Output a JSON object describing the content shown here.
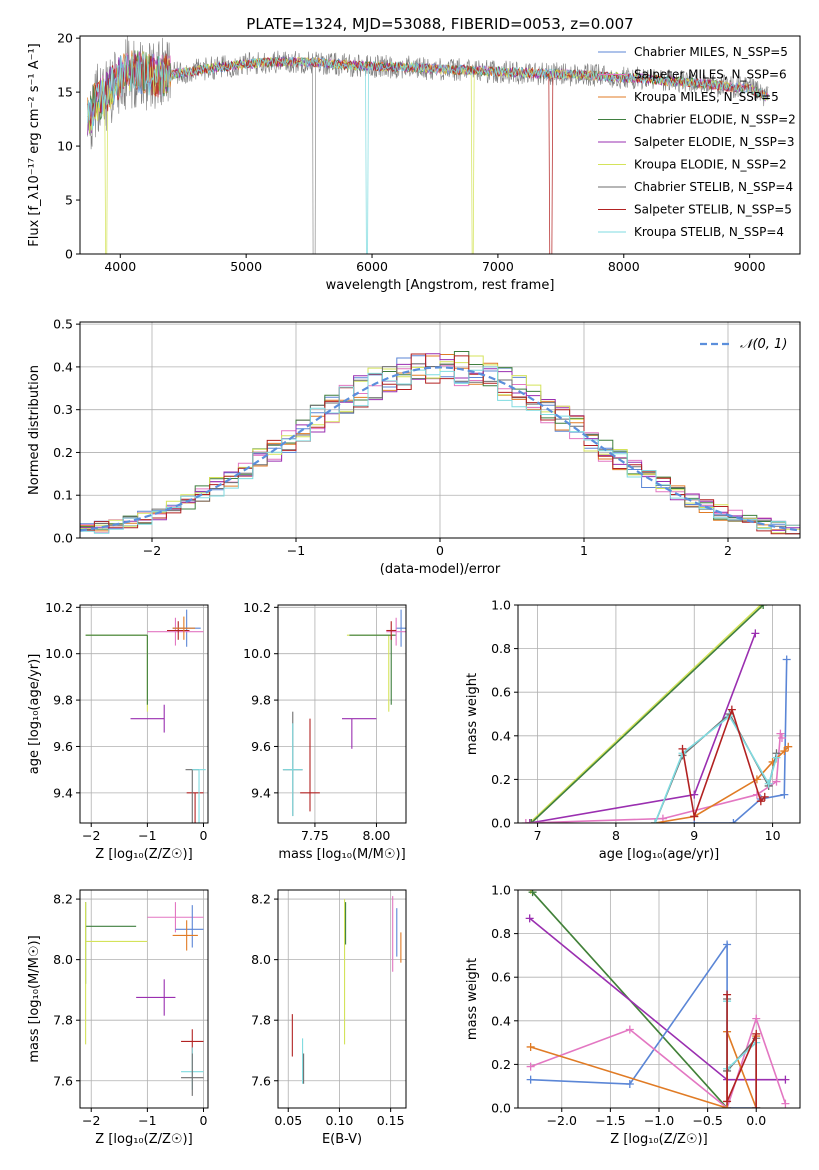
{
  "figure": {
    "title": "PLATE=1324, MJD=53088, FIBERID=0053, z=0.007"
  },
  "colors": {
    "grid": "#b0b0b0",
    "series": [
      "#5b86d6",
      "#e377c2",
      "#e07b25",
      "#3f7f3f",
      "#9a2fb0",
      "#d4e35a",
      "#6e6e6e",
      "#b22222",
      "#7fdbe0"
    ]
  },
  "chart_data": [
    {
      "id": "spectrum",
      "type": "line",
      "xlabel": "wavelength [Angstrom, rest frame]",
      "ylabel": "Flux [f_λ10⁻¹⁷ erg cm⁻² s⁻¹ A⁻¹]",
      "xlim": [
        3680,
        9400
      ],
      "ylim": [
        0,
        20.2
      ],
      "xticks": [
        4000,
        5000,
        6000,
        7000,
        8000,
        9000
      ],
      "yticks": [
        0,
        5,
        10,
        15,
        20
      ],
      "grid": false,
      "legend_position": "top-right",
      "legend": [
        "Chabrier MILES, N_SSP=5",
        "Salpeter MILES, N_SSP=6",
        "Kroupa MILES, N_SSP=5",
        "Chabrier ELODIE, N_SSP=2",
        "Salpeter ELODIE, N_SSP=3",
        "Kroupa ELODIE, N_SSP=2",
        "Chabrier STELIB, N_SSP=4",
        "Salpeter STELIB, N_SSP=5",
        "Kroupa STELIB, N_SSP=4"
      ],
      "continuum": {
        "x": [
          3750,
          3800,
          3900,
          4000,
          4100,
          4300,
          4500,
          4700,
          5000,
          5200,
          5500,
          5800,
          6000,
          6300,
          6600,
          7000,
          7400,
          7800,
          8200,
          8600,
          9000,
          9150
        ],
        "y": [
          12.5,
          14,
          15,
          16.5,
          17,
          16.5,
          16.8,
          17.2,
          17.6,
          17.8,
          17.8,
          17.5,
          17.4,
          17.3,
          17.1,
          16.9,
          16.7,
          16.5,
          16.2,
          15.8,
          15.3,
          14.5
        ]
      },
      "dropouts": [
        {
          "x": 3890,
          "series": 5
        },
        {
          "x": 5540,
          "series": 6
        },
        {
          "x": 5960,
          "series": 8
        },
        {
          "x": 6800,
          "series": 5
        },
        {
          "x": 7420,
          "series": 7
        }
      ]
    },
    {
      "id": "residuals",
      "type": "line",
      "xlabel": "(data-model)/error",
      "ylabel": "Normed distribution",
      "xlim": [
        -2.5,
        2.5
      ],
      "ylim": [
        0,
        0.505
      ],
      "xticks": [
        -2,
        -1,
        0,
        1,
        2
      ],
      "xtick_labels": [
        "−2",
        "−1",
        "0",
        "1",
        "2"
      ],
      "yticks": [
        0,
        0.1,
        0.2,
        0.3,
        0.4,
        0.5
      ],
      "ytick_labels": [
        "0.0",
        "0.1",
        "0.2",
        "0.3",
        "0.4",
        "0.5"
      ],
      "grid": true,
      "legend_position": "top-right",
      "legend": [
        "𝒩(0, 1)"
      ],
      "gaussian": {
        "mean": 0,
        "sigma": 1,
        "amplitude": 0.3989
      },
      "histogram_bin_width": 0.1
    },
    {
      "id": "age-vs-Z",
      "type": "scatter",
      "xlabel": "Z [log₁₀(Z/Z☉)]",
      "ylabel": "age  [log₁₀(age/yr)]",
      "xlim": [
        -2.2,
        0.08
      ],
      "ylim": [
        9.27,
        10.21
      ],
      "xticks": [
        -2,
        -1,
        0
      ],
      "xtick_labels": [
        "−2",
        "−1",
        "0"
      ],
      "yticks": [
        9.4,
        9.6,
        9.8,
        10.0,
        10.2
      ],
      "ytick_labels": [
        "9.4",
        "9.6",
        "9.8",
        "10.0",
        "10.2"
      ],
      "grid": true,
      "points": [
        {
          "series": 5,
          "x": -1.0,
          "y": 10.08,
          "xerr": [
            1.1,
            0
          ],
          "yerr": [
            0.33,
            0
          ]
        },
        {
          "series": 3,
          "x": -1.0,
          "y": 10.08,
          "xerr": [
            1.1,
            0
          ],
          "yerr": [
            0.3,
            0
          ]
        },
        {
          "series": 0,
          "x": -0.3,
          "y": 10.11,
          "xerr": [
            0.25,
            0.25
          ],
          "yerr": [
            0.08,
            0.08
          ]
        },
        {
          "series": 1,
          "x": -0.5,
          "y": 10.095,
          "xerr": [
            0.5,
            0.5
          ],
          "yerr": [
            0.06,
            0.06
          ]
        },
        {
          "series": 7,
          "x": -0.45,
          "y": 10.1,
          "xerr": [
            0.2,
            0.2
          ],
          "yerr": [
            0.04,
            0.04
          ]
        },
        {
          "series": 2,
          "x": -0.35,
          "y": 10.11,
          "xerr": [
            0.2,
            0.2
          ],
          "yerr": [
            0.05,
            0.05
          ]
        },
        {
          "series": 4,
          "x": -0.7,
          "y": 9.72,
          "xerr": [
            0.6,
            0.0
          ],
          "yerr": [
            0.06,
            0.06
          ]
        },
        {
          "series": 7,
          "x": -0.15,
          "y": 9.4,
          "xerr": [
            0.15,
            0.15
          ],
          "yerr": [
            0.32,
            0.0
          ]
        },
        {
          "series": 6,
          "x": -0.2,
          "y": 9.5,
          "xerr": [
            0.12,
            0.12
          ],
          "yerr": [
            0.25,
            0.0
          ]
        },
        {
          "series": 8,
          "x": -0.08,
          "y": 9.5,
          "xerr": [
            0.12,
            0.12
          ],
          "yerr": [
            0.25,
            0.0
          ]
        }
      ]
    },
    {
      "id": "age-vs-mass",
      "type": "scatter",
      "xlabel": "mass [log₁₀(M/M☉)]",
      "ylabel": "",
      "xlim": [
        7.6,
        8.12
      ],
      "ylim": [
        9.27,
        10.21
      ],
      "xticks": [
        7.75,
        8.0
      ],
      "xtick_labels": [
        "7.75",
        "8.00"
      ],
      "yticks": [
        9.4,
        9.6,
        9.8,
        10.0,
        10.2
      ],
      "ytick_labels": [
        "9.4",
        "9.6",
        "9.8",
        "10.0",
        "10.2"
      ],
      "grid": true,
      "points": [
        {
          "series": 5,
          "x": 8.05,
          "y": 10.08,
          "xerr": [
            0.17,
            0.02
          ],
          "yerr": [
            0.33,
            0
          ]
        },
        {
          "series": 3,
          "x": 8.06,
          "y": 10.08,
          "xerr": [
            0.17,
            0.02
          ],
          "yerr": [
            0.3,
            0
          ]
        },
        {
          "series": 0,
          "x": 8.1,
          "y": 10.11,
          "xerr": [
            0.02,
            0.02
          ],
          "yerr": [
            0.08,
            0.08
          ]
        },
        {
          "series": 1,
          "x": 8.08,
          "y": 10.095,
          "xerr": [
            0.04,
            0.04
          ],
          "yerr": [
            0.06,
            0.06
          ]
        },
        {
          "series": 7,
          "x": 8.06,
          "y": 10.1,
          "xerr": [
            0.02,
            0.02
          ],
          "yerr": [
            0.04,
            0.04
          ]
        },
        {
          "series": 4,
          "x": 7.9,
          "y": 9.72,
          "xerr": [
            0.04,
            0.1
          ],
          "yerr": [
            0.13,
            0.0
          ]
        },
        {
          "series": 7,
          "x": 7.73,
          "y": 9.4,
          "xerr": [
            0.04,
            0.04
          ],
          "yerr": [
            0.08,
            0.32
          ]
        },
        {
          "series": 6,
          "x": 7.66,
          "y": 9.5,
          "xerr": [
            0.04,
            0.04
          ],
          "yerr": [
            0.2,
            0.25
          ]
        },
        {
          "series": 8,
          "x": 7.66,
          "y": 9.5,
          "xerr": [
            0.04,
            0.04
          ],
          "yerr": [
            0.2,
            0.2
          ]
        }
      ]
    },
    {
      "id": "weight-vs-age",
      "type": "line",
      "xlabel": "age  [log₁₀(age/yr)]",
      "ylabel": "mass weight",
      "xlim": [
        6.75,
        10.35
      ],
      "ylim": [
        0,
        1
      ],
      "xticks": [
        7,
        8,
        9,
        10
      ],
      "yticks": [
        0,
        0.2,
        0.4,
        0.6,
        0.8,
        1.0
      ],
      "ytick_labels": [
        "0.0",
        "0.2",
        "0.4",
        "0.6",
        "0.8",
        "1.0"
      ],
      "grid": true,
      "series": [
        {
          "color_index": 5,
          "x": [
            6.9,
            9.85
          ],
          "y": [
            0.0,
            1.0
          ]
        },
        {
          "color_index": 3,
          "x": [
            6.92,
            9.88
          ],
          "y": [
            0.0,
            1.0
          ]
        },
        {
          "color_index": 4,
          "x": [
            6.9,
            9.0,
            9.78
          ],
          "y": [
            0.0,
            0.13,
            0.87
          ]
        },
        {
          "color_index": 0,
          "x": [
            8.5,
            9.0,
            9.5,
            9.85,
            10.15,
            10.18
          ],
          "y": [
            0.0,
            0.0,
            0.0,
            0.11,
            0.13,
            0.75
          ]
        },
        {
          "color_index": 1,
          "x": [
            6.85,
            8.6,
            9.8,
            10.05,
            10.1,
            10.12
          ],
          "y": [
            0.0,
            0.02,
            0.13,
            0.19,
            0.41,
            0.39
          ]
        },
        {
          "color_index": 2,
          "x": [
            8.5,
            9.0,
            9.8,
            10.0,
            10.15,
            10.2
          ],
          "y": [
            0.0,
            0.03,
            0.2,
            0.28,
            0.33,
            0.35
          ]
        },
        {
          "color_index": 6,
          "x": [
            8.5,
            8.85,
            9.45,
            9.95,
            10.05
          ],
          "y": [
            0.0,
            0.31,
            0.5,
            0.17,
            0.32
          ]
        },
        {
          "color_index": 8,
          "x": [
            8.5,
            8.85,
            9.45,
            9.95,
            10.05
          ],
          "y": [
            0.0,
            0.32,
            0.49,
            0.18,
            0.3
          ]
        },
        {
          "color_index": 7,
          "x": [
            8.85,
            9.0,
            9.48,
            9.85,
            9.9
          ],
          "y": [
            0.34,
            0.03,
            0.52,
            0.1,
            0.12
          ]
        }
      ]
    },
    {
      "id": "mass-vs-Z",
      "type": "scatter",
      "xlabel": "Z [log₁₀(Z/Z☉)]",
      "ylabel": "mass [log₁₀(M/M☉)]",
      "xlim": [
        -2.2,
        0.08
      ],
      "ylim": [
        7.51,
        8.23
      ],
      "xticks": [
        -2,
        -1,
        0
      ],
      "xtick_labels": [
        "−2",
        "−1",
        "0"
      ],
      "yticks": [
        7.6,
        7.8,
        8.0,
        8.2
      ],
      "ytick_labels": [
        "7.6",
        "7.8",
        "8.0",
        "8.2"
      ],
      "grid": true,
      "points": [
        {
          "series": 3,
          "x": -2.1,
          "y": 8.11,
          "xerr": [
            0,
            0.9
          ],
          "yerr": [
            0.19,
            0.08
          ]
        },
        {
          "series": 5,
          "x": -2.1,
          "y": 8.06,
          "xerr": [
            0,
            1.1
          ],
          "yerr": [
            0.34,
            0.13
          ]
        },
        {
          "series": 1,
          "x": -0.5,
          "y": 8.14,
          "xerr": [
            0.5,
            0.5
          ],
          "yerr": [
            0.05,
            0.05
          ]
        },
        {
          "series": 0,
          "x": -0.2,
          "y": 8.1,
          "xerr": [
            0.3,
            0.2
          ],
          "yerr": [
            0.06,
            0.08
          ]
        },
        {
          "series": 2,
          "x": -0.3,
          "y": 8.08,
          "xerr": [
            0.25,
            0.2
          ],
          "yerr": [
            0.05,
            0.05
          ]
        },
        {
          "series": 4,
          "x": -0.7,
          "y": 7.875,
          "xerr": [
            0.5,
            0.2
          ],
          "yerr": [
            0.06,
            0.06
          ]
        },
        {
          "series": 7,
          "x": -0.2,
          "y": 7.73,
          "xerr": [
            0.2,
            0.2
          ],
          "yerr": [
            0.04,
            0.04
          ]
        },
        {
          "series": 8,
          "x": -0.2,
          "y": 7.63,
          "xerr": [
            0.2,
            0.2
          ],
          "yerr": [
            0.06,
            0.08
          ]
        },
        {
          "series": 6,
          "x": -0.2,
          "y": 7.61,
          "xerr": [
            0.2,
            0.2
          ],
          "yerr": [
            0.06,
            0.08
          ]
        }
      ]
    },
    {
      "id": "mass-vs-ebv",
      "type": "scatter",
      "xlabel": "E(B-V)",
      "ylabel": "",
      "xlim": [
        0.04,
        0.165
      ],
      "ylim": [
        7.51,
        8.23
      ],
      "xticks": [
        0.05,
        0.1,
        0.15
      ],
      "xtick_labels": [
        "0.05",
        "0.10",
        "0.15"
      ],
      "yticks": [
        7.6,
        7.8,
        8.0,
        8.2
      ],
      "ytick_labels": [
        "7.6",
        "7.8",
        "8.0",
        "8.2"
      ],
      "grid": true,
      "points": [
        {
          "series": 7,
          "x": 0.054,
          "y": 7.75,
          "xerr": [
            0,
            0
          ],
          "yerr": [
            0.07,
            0.07
          ]
        },
        {
          "series": 8,
          "x": 0.064,
          "y": 7.66,
          "xerr": [
            0,
            0
          ],
          "yerr": [
            0.07,
            0.08
          ]
        },
        {
          "series": 6,
          "x": 0.065,
          "y": 7.64,
          "xerr": [
            0,
            0
          ],
          "yerr": [
            0.05,
            0.05
          ]
        },
        {
          "series": 5,
          "x": 0.105,
          "y": 7.9,
          "xerr": [
            0,
            0
          ],
          "yerr": [
            0.18,
            0.3
          ]
        },
        {
          "series": 3,
          "x": 0.106,
          "y": 8.1,
          "xerr": [
            0,
            0
          ],
          "yerr": [
            0.05,
            0.09
          ]
        },
        {
          "series": 1,
          "x": 0.152,
          "y": 8.06,
          "xerr": [
            0,
            0
          ],
          "yerr": [
            0.1,
            0.15
          ]
        },
        {
          "series": 0,
          "x": 0.156,
          "y": 8.09,
          "xerr": [
            0,
            0
          ],
          "yerr": [
            0.08,
            0.08
          ]
        },
        {
          "series": 2,
          "x": 0.16,
          "y": 8.04,
          "xerr": [
            0,
            0
          ],
          "yerr": [
            0.05,
            0.05
          ]
        }
      ]
    },
    {
      "id": "weight-vs-Z",
      "type": "line",
      "xlabel": "Z [log₁₀(Z/Z☉)]",
      "ylabel": "mass weight",
      "xlim": [
        -2.45,
        0.45
      ],
      "ylim": [
        0,
        1
      ],
      "xticks": [
        -2.0,
        -1.5,
        -1.0,
        -0.5,
        0.0
      ],
      "xtick_labels": [
        "−2.0",
        "−1.5",
        "−1.0",
        "−0.5",
        "0.0"
      ],
      "yticks": [
        0,
        0.2,
        0.4,
        0.6,
        0.8,
        1.0
      ],
      "ytick_labels": [
        "0.0",
        "0.2",
        "0.4",
        "0.6",
        "0.8",
        "1.0"
      ],
      "grid": true,
      "series": [
        {
          "color_index": 5,
          "x": [
            -2.32,
            -0.3
          ],
          "y": [
            1.0,
            0.0
          ]
        },
        {
          "color_index": 3,
          "x": [
            -2.3,
            -0.3
          ],
          "y": [
            0.99,
            0.0
          ]
        },
        {
          "color_index": 4,
          "x": [
            -2.33,
            -0.3,
            0.3
          ],
          "y": [
            0.87,
            0.13,
            0.13
          ]
        },
        {
          "color_index": 0,
          "x": [
            -2.32,
            -1.3,
            -0.3,
            -0.3,
            0.0
          ],
          "y": [
            0.13,
            0.11,
            0.75,
            0.0,
            0.0
          ]
        },
        {
          "color_index": 1,
          "x": [
            -2.32,
            -1.3,
            -0.3,
            0.0,
            0.3
          ],
          "y": [
            0.19,
            0.36,
            0.0,
            0.41,
            0.02
          ]
        },
        {
          "color_index": 2,
          "x": [
            -2.32,
            -0.3,
            -0.3,
            0.0,
            0.0
          ],
          "y": [
            0.28,
            0.0,
            0.35,
            0.0,
            0.33
          ]
        },
        {
          "color_index": 6,
          "x": [
            -0.3,
            -0.3,
            0.0,
            0.0
          ],
          "y": [
            0.5,
            0.17,
            0.32,
            0.0
          ]
        },
        {
          "color_index": 8,
          "x": [
            -0.3,
            -0.3,
            0.0,
            0.0
          ],
          "y": [
            0.49,
            0.18,
            0.3,
            0.0
          ]
        },
        {
          "color_index": 7,
          "x": [
            -0.3,
            -0.3,
            0.0,
            0.0
          ],
          "y": [
            0.52,
            0.03,
            0.34,
            0.0
          ]
        }
      ]
    }
  ]
}
